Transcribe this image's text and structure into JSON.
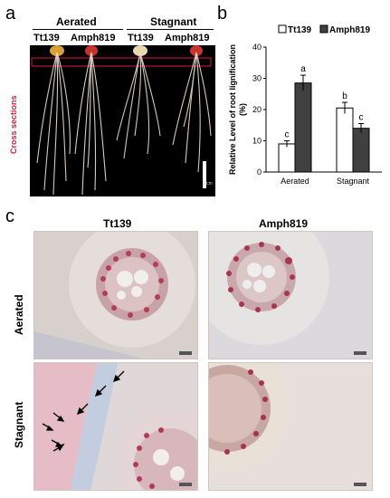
{
  "panel_a": {
    "letter": "a",
    "group_aerated": "Aerated",
    "group_stagnant": "Stagnant",
    "col1": "Tt139",
    "col2": "Amph819",
    "col3": "Tt139",
    "col4": "Amph819",
    "cross_sections_label": "Cross sections",
    "scalebar_label": "5 cm",
    "colors": {
      "background": "#000000",
      "section_box": "#d81b3c"
    }
  },
  "panel_b": {
    "letter": "b",
    "legend_tt": "Tt139",
    "legend_amph": "Amph819",
    "chart_data": {
      "type": "bar",
      "categories": [
        "Aerated",
        "Stagnant"
      ],
      "series": [
        {
          "name": "Tt139",
          "values": [
            9,
            20.5
          ],
          "errors": [
            1,
            1.8
          ],
          "letters": [
            "c",
            "b"
          ],
          "color": "#ffffff"
        },
        {
          "name": "Amph819",
          "values": [
            28.5,
            14
          ],
          "errors": [
            2.5,
            1.5
          ],
          "letters": [
            "a",
            "c"
          ],
          "color": "#404040"
        }
      ],
      "ylabel": "Relative Level of root lignification (%)",
      "yticks": [
        "0",
        "10",
        "20",
        "30",
        "40"
      ],
      "ylim": [
        0,
        40
      ],
      "legend_position": "top",
      "grid": false
    }
  },
  "panel_c": {
    "letter": "c",
    "col1": "Tt139",
    "col2": "Amph819",
    "row1": "Aerated",
    "row2": "Stagnant"
  }
}
